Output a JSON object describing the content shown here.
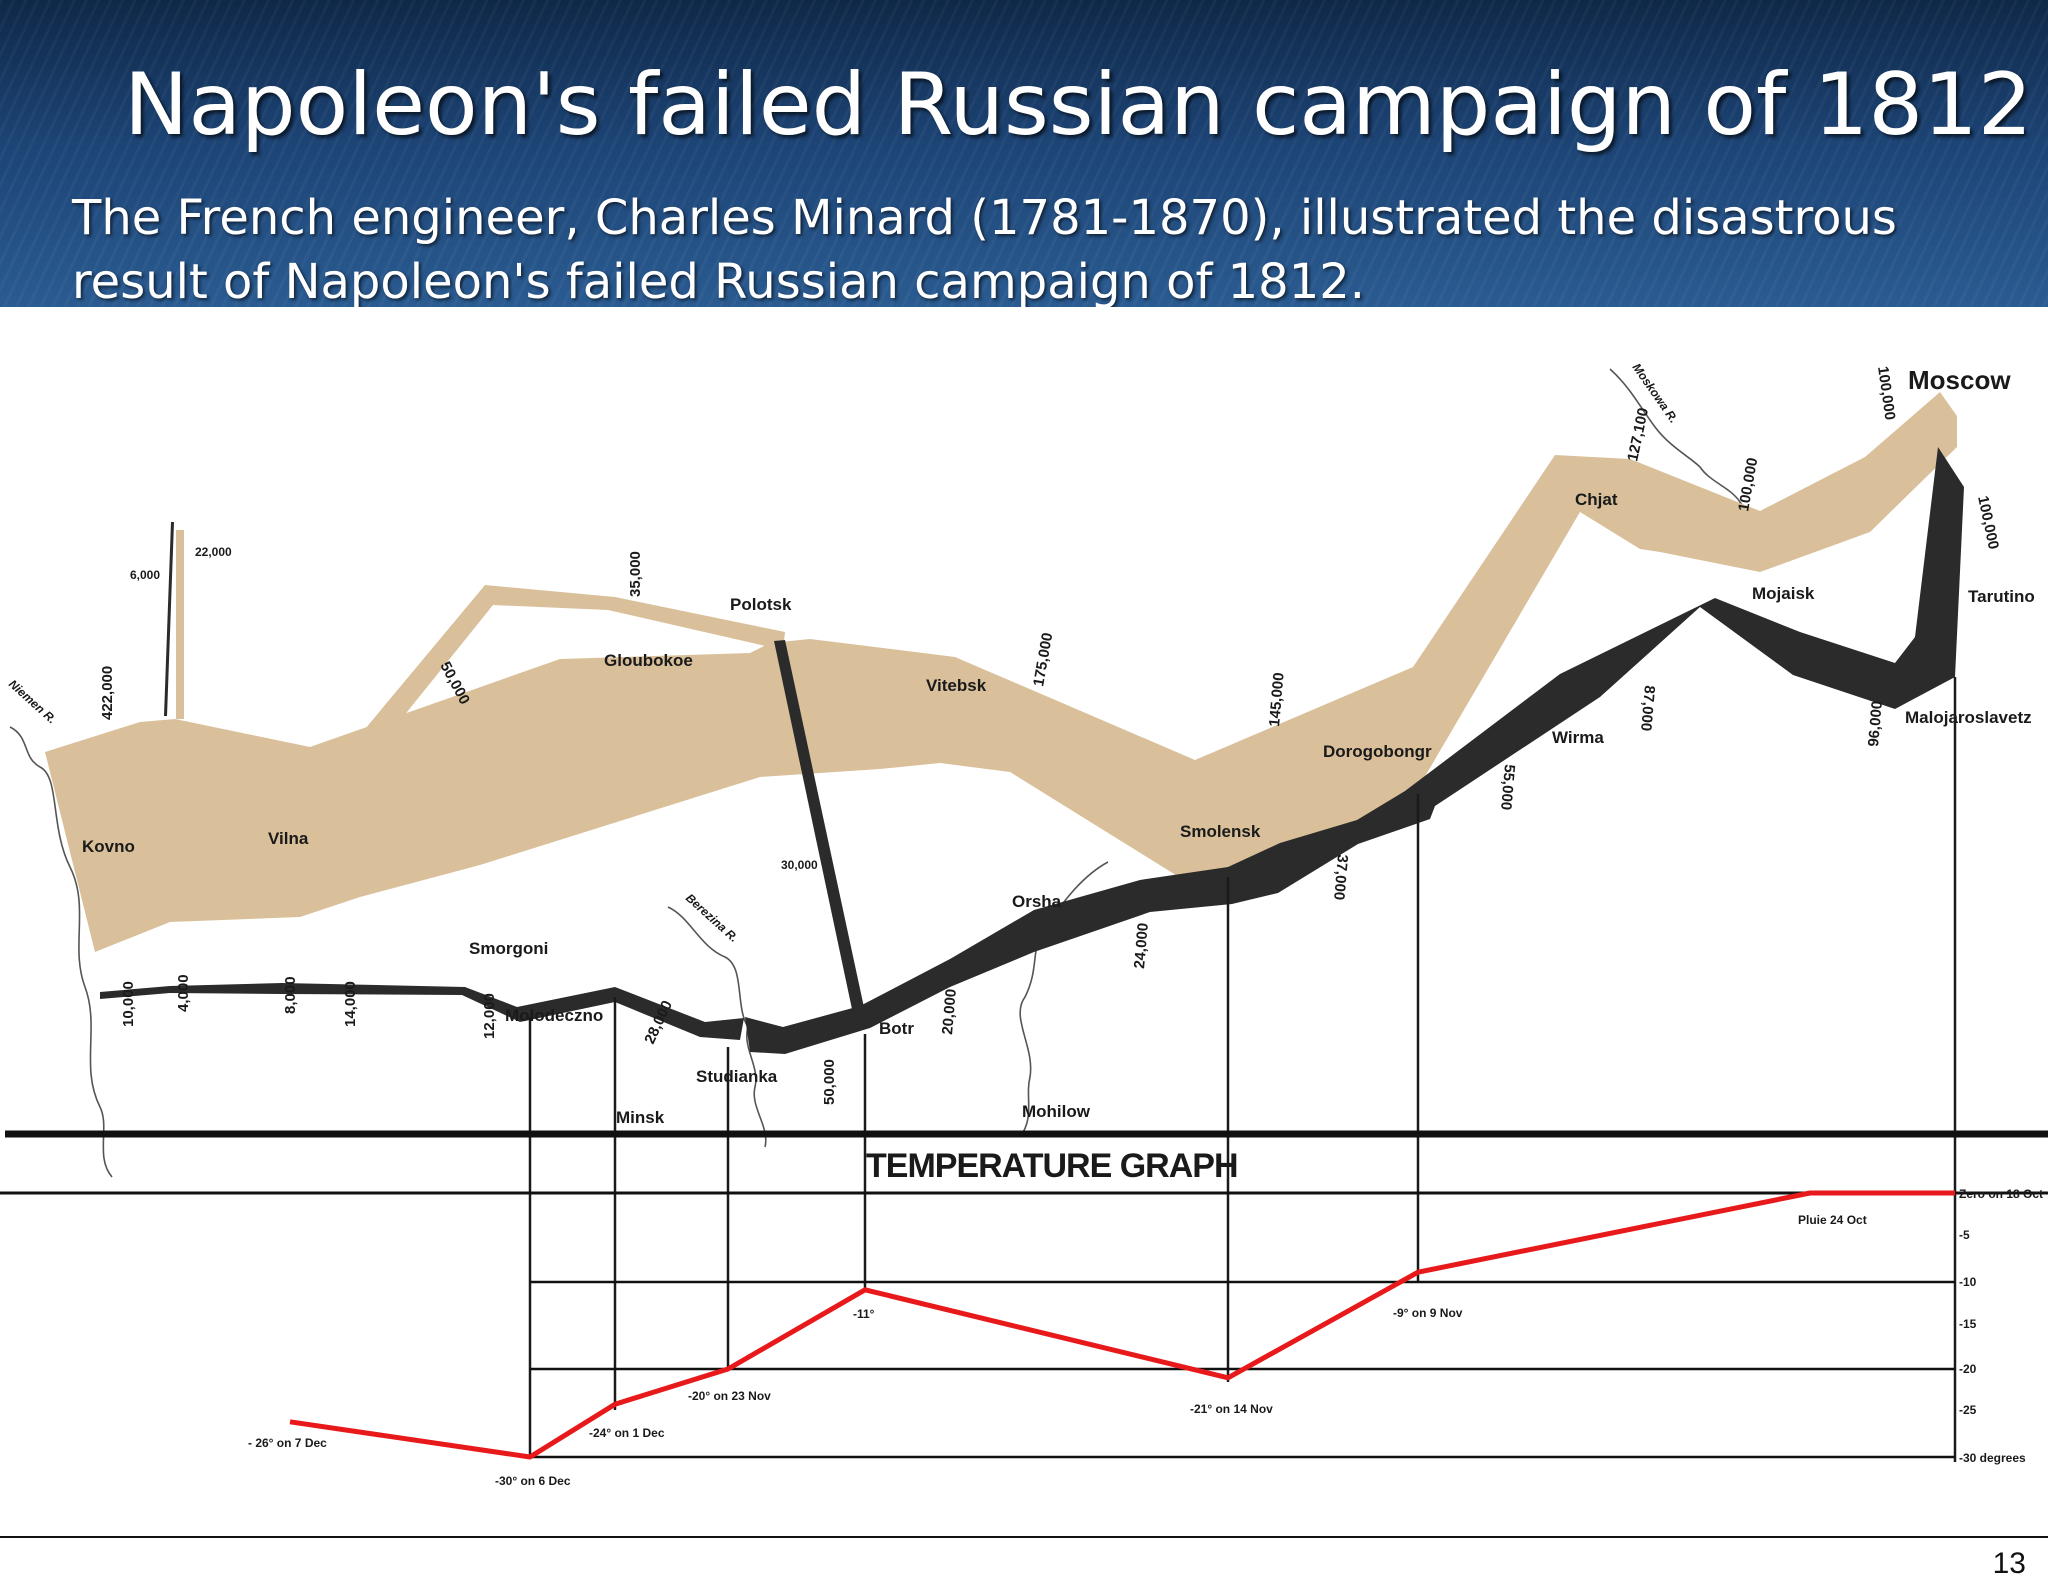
{
  "slide": {
    "title": "Napoleon's failed Russian campaign of 1812",
    "subtitle": "The French engineer, Charles Minard (1781-1870), illustrated the disastrous result of Napoleon's failed Russian campaign of 1812.",
    "page_number": "13"
  },
  "colors": {
    "advance": "#d9c09a",
    "retreat": "#2b2b2b",
    "temperature": "#e8191b",
    "header": "#1c4374"
  },
  "map": {
    "cities": {
      "moscow": "Moscow",
      "kovno": "Kovno",
      "vilna": "Vilna",
      "smorgoni": "Smorgoni",
      "molodeczno": "Molodeczno",
      "minsk": "Minsk",
      "studianka": "Studianka",
      "gloubokoe": "Gloubokoe",
      "polotsk": "Polotsk",
      "vitebsk": "Vitebsk",
      "botr": "Botr",
      "orsha": "Orsha",
      "mohilow": "Mohilow",
      "smolensk": "Smolensk",
      "dorogobongr": "Dorogobongr",
      "wirma": "Wirma",
      "chjat": "Chjat",
      "mojaisk": "Mojaisk",
      "tarutino": "Tarutino",
      "malojaroslavetz": "Malojaroslavetz"
    },
    "rivers": {
      "niemen": "Niemen R.",
      "berezina": "Berezina R.",
      "moskowa": "Moskowa R."
    },
    "troop_labels": {
      "a422000": "422,000",
      "a22000": "22,000",
      "a6000": "6,000",
      "a50000": "50,000",
      "a35000": "35,000",
      "a30000": "30,000",
      "a175000": "175,000",
      "a145000": "145,000",
      "a127100": "127,100",
      "a100000_top": "100,000",
      "a100000_mojaisk": "100,000",
      "r100000": "100,000",
      "r96000": "96,000",
      "r87000": "87,000",
      "r55000": "55,000",
      "r37000": "37,000",
      "r24000": "24,000",
      "r20000": "20,000",
      "r50000": "50,000",
      "r28000": "28,000",
      "r12000": "12,000",
      "r14000": "14,000",
      "r8000": "8,000",
      "r4000": "4,000",
      "r10000": "10,000"
    }
  },
  "temperature_graph": {
    "title": "TEMPERATURE GRAPH",
    "scale_labels": {
      "zero": "Zero on 18 Oct",
      "m5": "-5",
      "m10": "-10",
      "m15": "-15",
      "m20": "-20",
      "m25": "-25",
      "m30": "-30 degrees"
    },
    "scale_values": [
      0,
      -5,
      -10,
      -15,
      -20,
      -25,
      -30
    ],
    "readings": [
      {
        "date": "18 Oct",
        "value": 0,
        "label": ""
      },
      {
        "date": "24 Oct",
        "value": 0,
        "label": "Pluie 24 Oct"
      },
      {
        "date": "9 Nov",
        "value": -9,
        "label": "-9° on 9 Nov"
      },
      {
        "date": "14 Nov",
        "value": -21,
        "label": "-21° on 14 Nov"
      },
      {
        "date": "",
        "value": -11,
        "label": "-11°"
      },
      {
        "date": "23 Nov",
        "value": -20,
        "label": "-20° on 23 Nov"
      },
      {
        "date": "1 Dec",
        "value": -24,
        "label": "-24° on 1 Dec"
      },
      {
        "date": "6 Dec",
        "value": -30,
        "label": "-30° on 6 Dec"
      },
      {
        "date": "7 Dec",
        "value": -26,
        "label": "- 26° on 7 Dec"
      }
    ]
  }
}
